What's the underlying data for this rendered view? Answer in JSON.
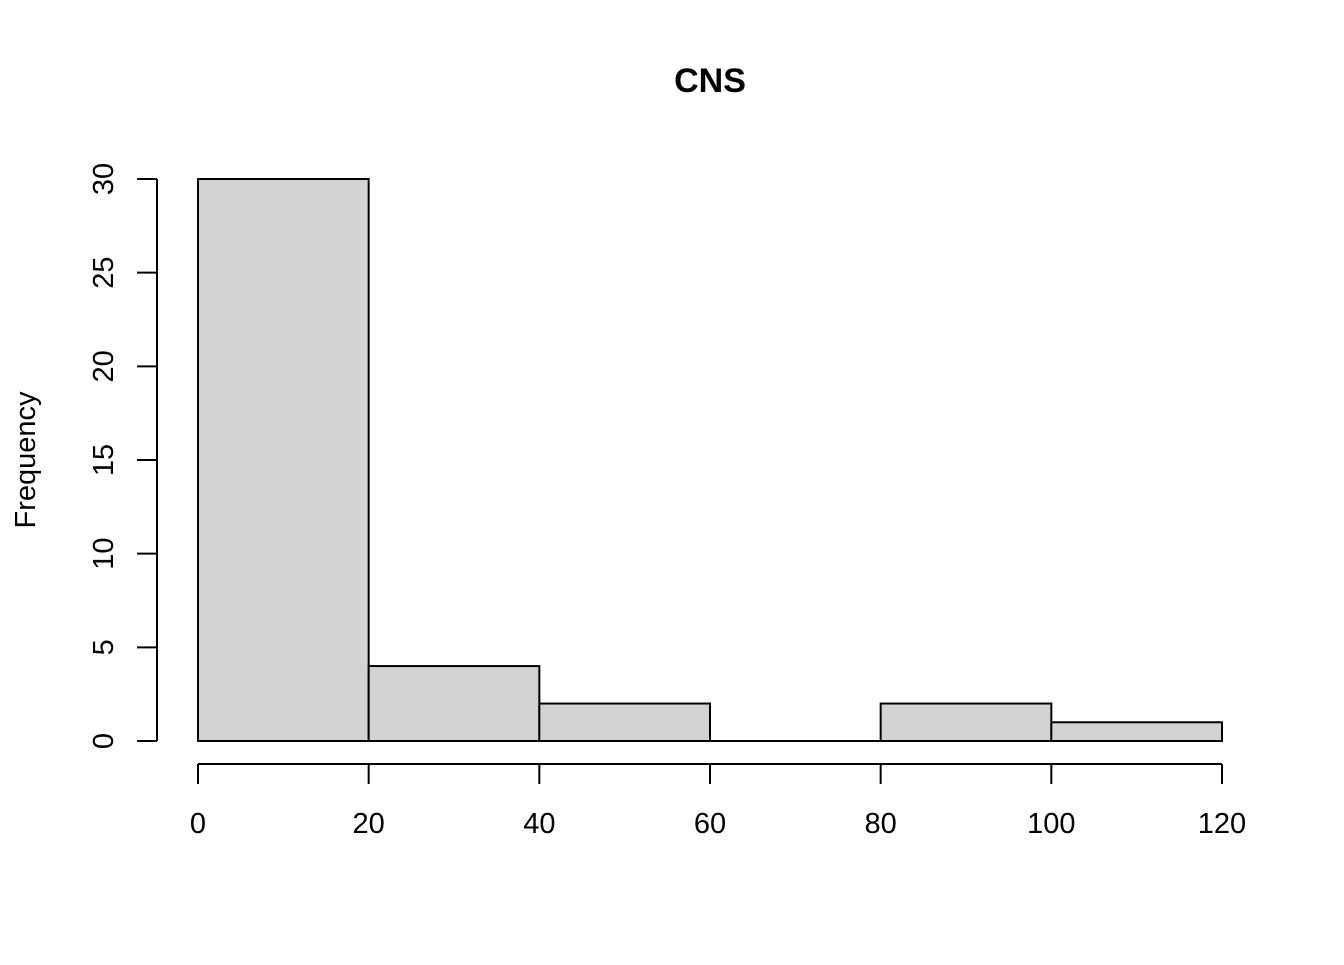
{
  "chart_data": {
    "type": "bar",
    "subtype": "histogram",
    "title": "CNS",
    "xlabel": "",
    "ylabel": "Frequency",
    "bins": [
      {
        "from": 0,
        "to": 20,
        "count": 30
      },
      {
        "from": 20,
        "to": 40,
        "count": 4
      },
      {
        "from": 40,
        "to": 60,
        "count": 2
      },
      {
        "from": 60,
        "to": 80,
        "count": 0
      },
      {
        "from": 80,
        "to": 100,
        "count": 2
      },
      {
        "from": 100,
        "to": 120,
        "count": 1
      }
    ],
    "xlim": [
      0,
      120
    ],
    "ylim": [
      0,
      30
    ],
    "x_ticks": [
      0,
      20,
      40,
      60,
      80,
      100,
      120
    ],
    "y_ticks": [
      0,
      5,
      10,
      15,
      20,
      25,
      30
    ],
    "bar_fill": "#d3d3d3",
    "bar_stroke": "#000000",
    "grid": false,
    "legend": "none"
  }
}
